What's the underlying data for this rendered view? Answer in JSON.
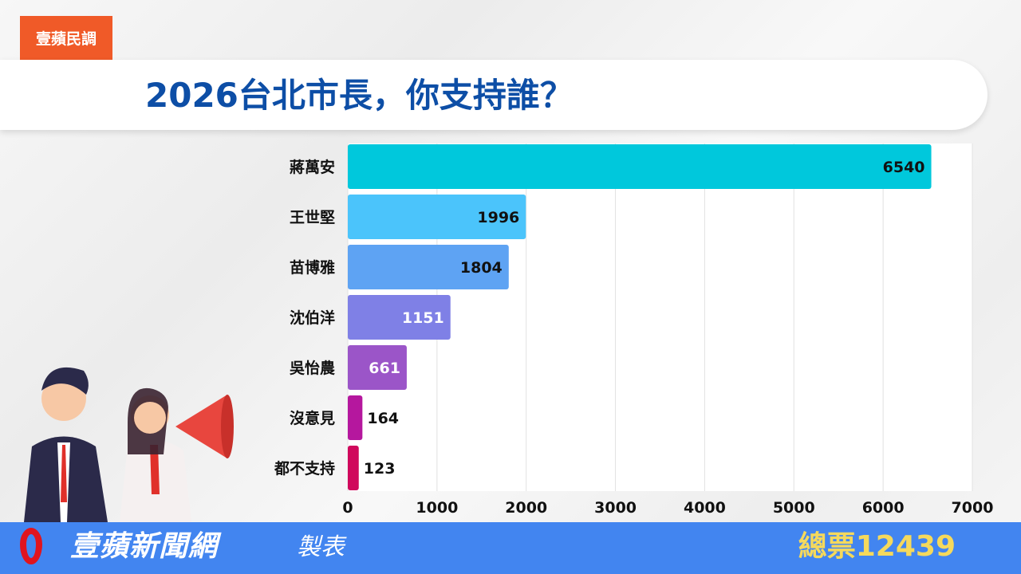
{
  "header": {
    "tag": "壹蘋民調",
    "title": "2026台北市長，你支持誰？"
  },
  "footer": {
    "brand": "壹蘋新聞網",
    "brand_suffix": "製表",
    "total": "總票12439"
  },
  "colors": {
    "tag": "#f05a28",
    "title": "#0d4ea6",
    "footer": "#4285f0",
    "total": "#f5d95c"
  },
  "chart_data": {
    "type": "bar",
    "orientation": "horizontal",
    "categories": [
      "蔣萬安",
      "王世堅",
      "苗博雅",
      "沈伯洋",
      "吳怡農",
      "沒意見",
      "都不支持"
    ],
    "values": [
      6540,
      1996,
      1804,
      1151,
      661,
      164,
      123
    ],
    "bar_colors": [
      "#00c8dc",
      "#4bc4fb",
      "#5ea3f3",
      "#7f80e6",
      "#9b55c8",
      "#b5179e",
      "#d0085c"
    ],
    "xlim": [
      0,
      7000
    ],
    "xticks": [
      0,
      1000,
      2000,
      3000,
      4000,
      5000,
      6000,
      7000
    ],
    "grid": true,
    "xlabel": "",
    "ylabel": ""
  }
}
